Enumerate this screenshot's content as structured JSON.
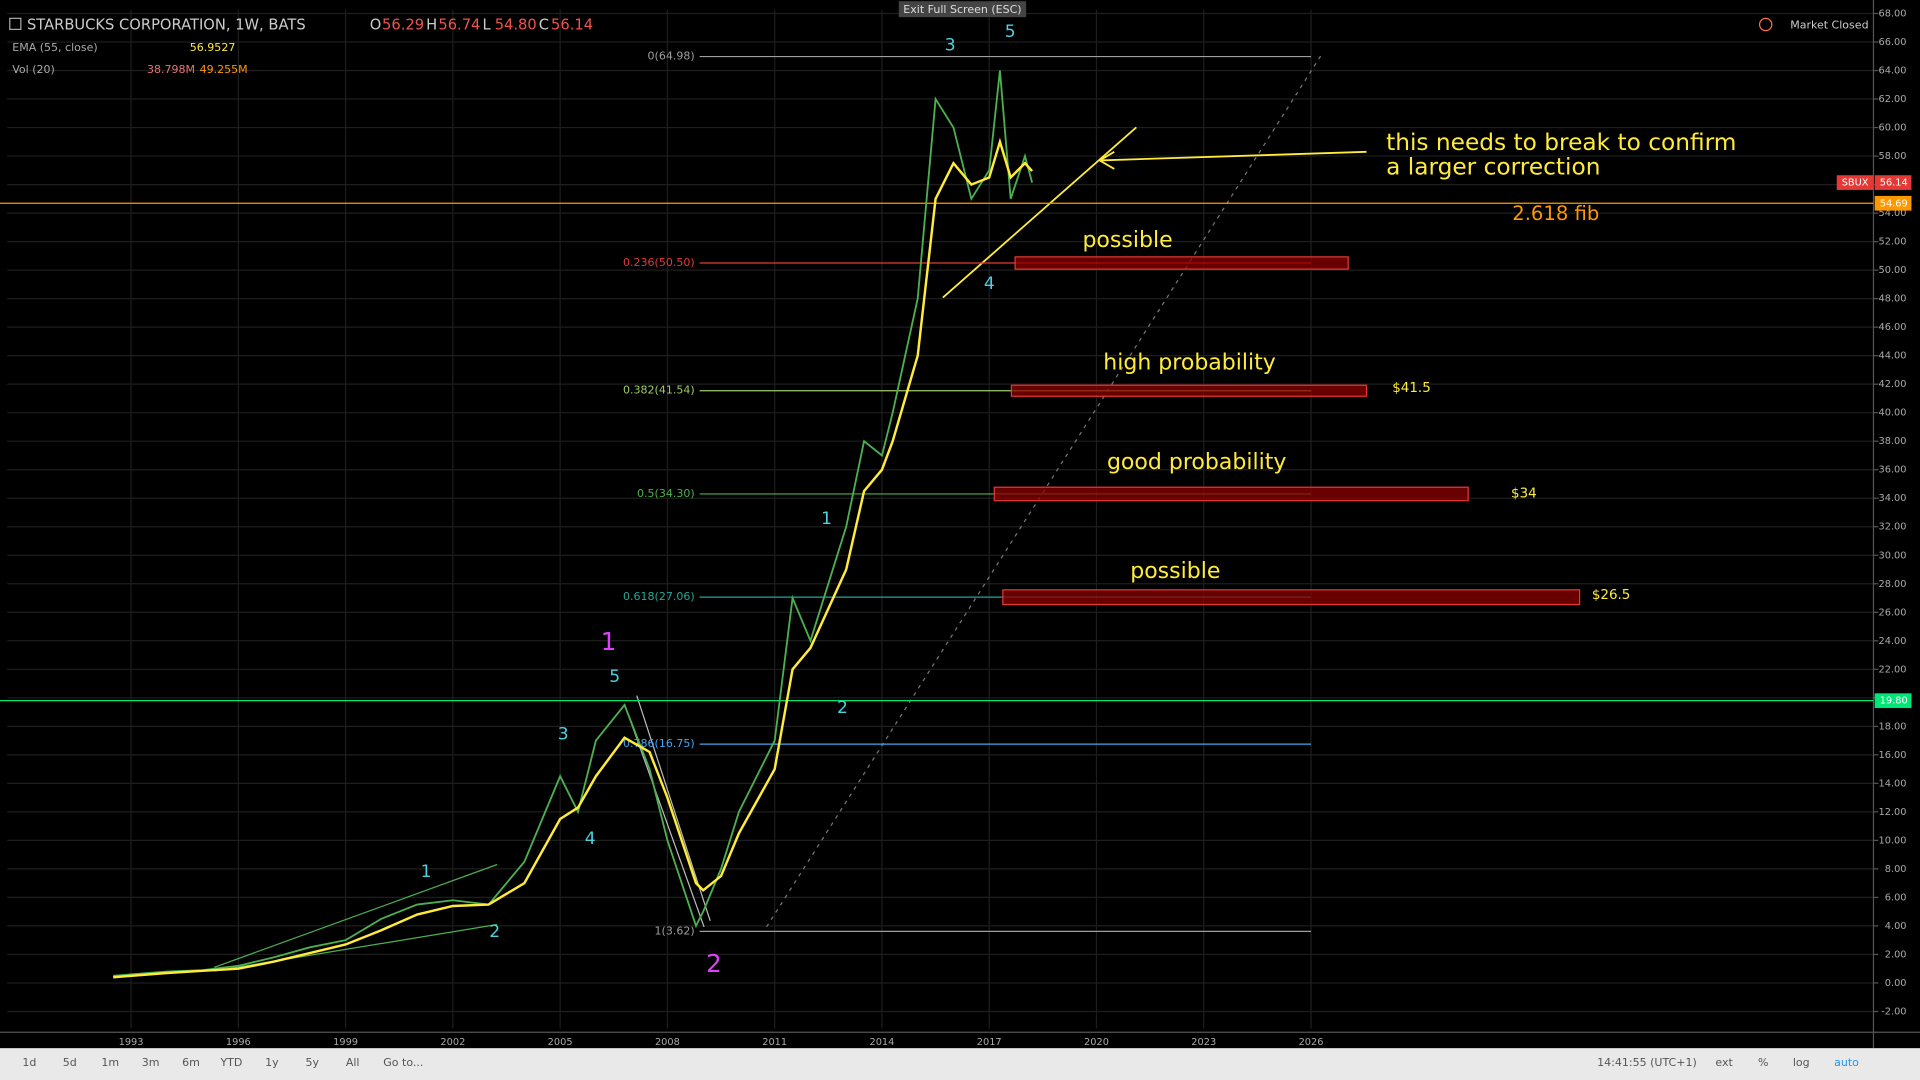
{
  "header": {
    "title": "STARBUCKS CORPORATION, 1W, BATS",
    "ohlc": [
      [
        "O",
        "56.29"
      ],
      [
        "H",
        "56.74"
      ],
      [
        "L",
        "54.80"
      ],
      [
        "C",
        "56.14"
      ]
    ],
    "ema": "EMA (55, close)",
    "ema_value": "56.9527",
    "vol": "Vol (20)",
    "vol_values": [
      "38.798M",
      "49.255M"
    ],
    "exit": "Exit Full Screen (ESC)",
    "market": "Market Closed"
  },
  "toolbar": {
    "left": [
      "1d",
      "5d",
      "1m",
      "3m",
      "6m",
      "YTD",
      "1y",
      "5y",
      "All",
      "Go to..."
    ],
    "right": [
      "14:41:55 (UTC+1)",
      "ext",
      "%",
      "log",
      "auto"
    ]
  },
  "chart_data": {
    "type": "line",
    "x": [
      1992.5,
      1994,
      1995,
      1996,
      1997,
      1998,
      1999,
      2000,
      2001,
      2002,
      2003,
      2004,
      2005,
      2005.5,
      2006,
      2006.8,
      2007.5,
      2008,
      2008.8,
      2009,
      2009.5,
      2010,
      2011,
      2011.5,
      2012,
      2013,
      2013.5,
      2014,
      2014.3,
      2015,
      2015.5,
      2016,
      2016.5,
      2017,
      2017.3,
      2017.6,
      2018,
      2018.2
    ],
    "series": [
      {
        "name": "SBUX",
        "color": "#4caf50",
        "values": [
          0.5,
          0.8,
          0.9,
          1.2,
          1.8,
          2.5,
          3.0,
          4.5,
          5.5,
          5.8,
          5.5,
          8.5,
          14.5,
          12,
          17,
          19.5,
          15,
          10,
          4,
          5,
          8,
          12,
          17,
          27,
          24,
          32,
          38,
          37,
          40,
          48,
          62,
          60,
          55,
          57,
          64,
          55,
          58,
          56.14
        ]
      },
      {
        "name": "EMA (55, close)",
        "color": "#ffeb3b",
        "values": [
          0.4,
          0.7,
          0.85,
          1.0,
          1.5,
          2.1,
          2.7,
          3.7,
          4.8,
          5.4,
          5.5,
          7.0,
          11.5,
          12.3,
          14.5,
          17.2,
          16.2,
          13,
          7,
          6.5,
          7.5,
          10.5,
          15,
          22,
          23.5,
          29,
          34.5,
          36,
          38,
          44,
          55,
          57.5,
          56,
          56.5,
          59,
          56.5,
          57.5,
          56.95
        ]
      }
    ],
    "xlim": [
      1989.54,
      2041.73
    ],
    "xticks": [
      1993,
      1996,
      1999,
      2002,
      2005,
      2008,
      2011,
      2014,
      2017,
      2020,
      2023,
      2026
    ],
    "ylim": [
      -3.2,
      68.26
    ],
    "yticks": [
      {
        "value": -2,
        "label": "-2.00"
      },
      {
        "value": 0,
        "label": "0.00"
      },
      {
        "value": 2,
        "label": "2.00"
      },
      {
        "value": 4,
        "label": "4.00"
      },
      {
        "value": 6,
        "label": "6.00"
      },
      {
        "value": 8,
        "label": "8.00"
      },
      {
        "value": 10,
        "label": "10.00"
      },
      {
        "value": 12,
        "label": "12.00"
      },
      {
        "value": 14,
        "label": "14.00"
      },
      {
        "value": 16,
        "label": "16.00"
      },
      {
        "value": 18,
        "label": "18.00"
      },
      {
        "value": 20,
        "label": "20.00"
      },
      {
        "value": 22,
        "label": "22.00"
      },
      {
        "value": 24,
        "label": "24.00"
      },
      {
        "value": 26,
        "label": "26.00"
      },
      {
        "value": 28,
        "label": "28.00"
      },
      {
        "value": 30,
        "label": "30.00"
      },
      {
        "value": 32,
        "label": "32.00"
      },
      {
        "value": 34,
        "label": "34.00"
      },
      {
        "value": 36,
        "label": "36.00"
      },
      {
        "value": 38,
        "label": "38.00"
      },
      {
        "value": 40,
        "label": "40.00"
      },
      {
        "value": 42,
        "label": "42.00"
      },
      {
        "value": 44,
        "label": "44.00"
      },
      {
        "value": 46,
        "label": "46.00"
      },
      {
        "value": 48,
        "label": "48.00"
      },
      {
        "value": 50,
        "label": "50.00"
      },
      {
        "value": 52,
        "label": "52.00"
      },
      {
        "value": 54,
        "label": "54.00"
      },
      {
        "value": 56,
        "label": "56.00"
      },
      {
        "value": 58,
        "label": "58.00"
      },
      {
        "value": 60,
        "label": "60.00"
      },
      {
        "value": 62,
        "label": "62.00"
      },
      {
        "value": 64,
        "label": "64.00"
      },
      {
        "value": 66,
        "label": "66.00"
      },
      {
        "value": 68,
        "label": "68.00"
      }
    ],
    "grid": true,
    "fib_levels": [
      {
        "value": 64.98,
        "label": "0(64.98)",
        "color": "#9e9e9e"
      },
      {
        "value": 50.5,
        "label": "0.236(50.50)",
        "color": "#e53935"
      },
      {
        "value": 41.54,
        "label": "0.382(41.54)",
        "color": "#9ccc65"
      },
      {
        "value": 34.3,
        "label": "0.5(34.30)",
        "color": "#4caf50"
      },
      {
        "value": 27.06,
        "label": "0.618(27.06)",
        "color": "#26a69a"
      },
      {
        "value": 16.75,
        "label": "0.786(16.75)",
        "color": "#42a5f5"
      },
      {
        "value": 3.62,
        "label": "1(3.62)",
        "color": "#9e9e9e"
      }
    ],
    "price_lines": [
      {
        "name": "SBUX",
        "value": 56.14,
        "label": "56.14",
        "color": "#e53935"
      },
      {
        "value": 54.69,
        "label": "54.69",
        "color": "#ff9800"
      },
      {
        "value": 19.8,
        "label": "19.80",
        "color": "#00e676"
      }
    ],
    "annotations": [
      "this needs to break to confirm",
      "a larger correction",
      "2.618 fib",
      "possible",
      "high probability",
      "good probability",
      "possible",
      "$41.5",
      "$34",
      "$26.5"
    ],
    "wave_labels": [
      "1",
      "2",
      "5",
      "3",
      "4",
      "1",
      "2",
      "1",
      "2",
      "3",
      "5",
      "4"
    ]
  }
}
